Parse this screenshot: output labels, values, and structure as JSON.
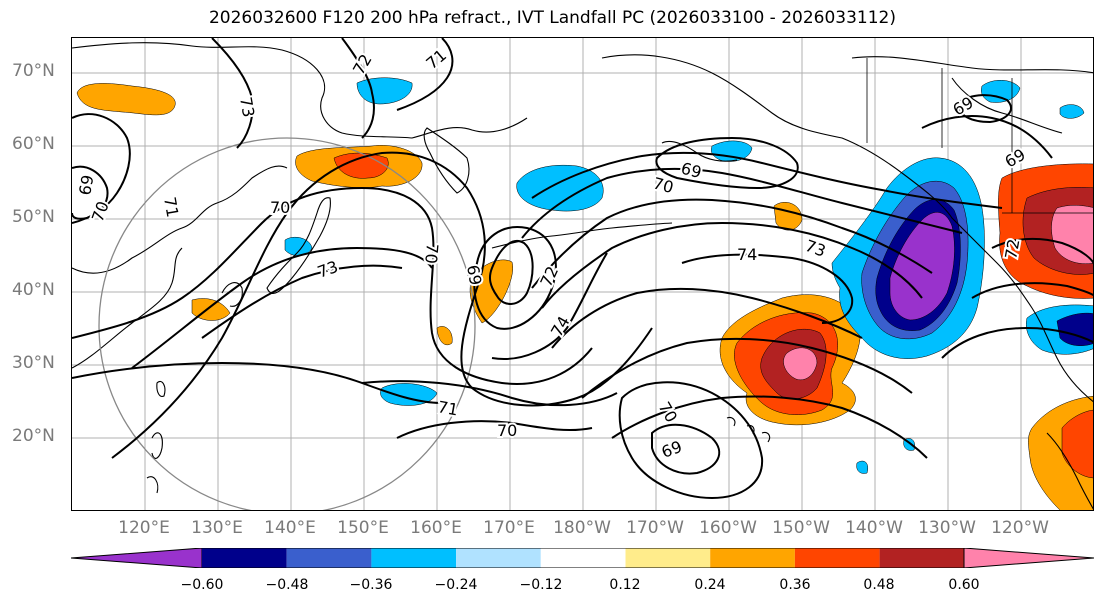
{
  "title": "2026032600 F120 200 hPa refract., IVT Landfall PC (2026033100 - 2026033112)",
  "latitude_labels": [
    "70°N",
    "60°N",
    "50°N",
    "40°N",
    "30°N",
    "20°N"
  ],
  "longitude_labels": [
    "120°E",
    "130°E",
    "140°E",
    "150°E",
    "160°E",
    "170°E",
    "180°W",
    "170°W",
    "160°W",
    "150°W",
    "140°W",
    "130°W",
    "120°W"
  ],
  "contour_labels": [
    "73",
    "72",
    "71",
    "71",
    "69",
    "70",
    "70",
    "73",
    "70",
    "69",
    "72",
    "74",
    "70",
    "69",
    "74",
    "73",
    "71",
    "70",
    "70",
    "69",
    "69",
    "69",
    "72"
  ],
  "colorbar": {
    "ticks": [
      "−0.60",
      "−0.48",
      "−0.36",
      "−0.24",
      "−0.12",
      "0.12",
      "0.24",
      "0.36",
      "0.48",
      "0.60"
    ],
    "colors": [
      "#9932cc",
      "#00008b",
      "#3a5fcd",
      "#00bfff",
      "#b0e2ff",
      "#ffffff",
      "#ffec8b",
      "#ffa500",
      "#ff4500",
      "#b22222",
      "#ff82ab"
    ]
  }
}
